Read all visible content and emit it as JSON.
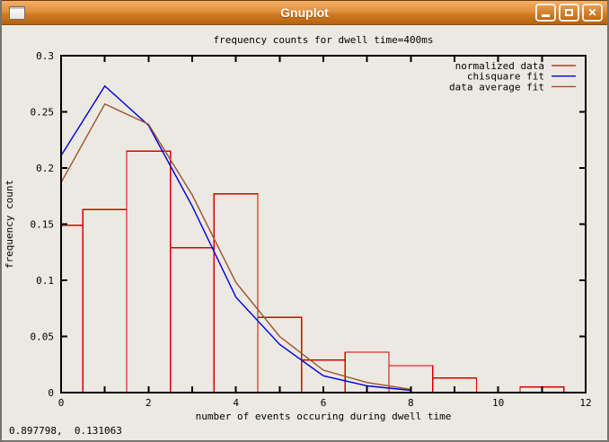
{
  "window": {
    "title": "Gnuplot",
    "controls": {
      "minimize_label": "minimize",
      "maximize_label": "maximize",
      "close_label": "close",
      "close_glyph": "✕"
    }
  },
  "status": {
    "coordinates": "0.897798,  0.131063"
  },
  "theme": {
    "canvas_bg": "#ece9e2",
    "titlebar_orange": "#d07c24",
    "border_black": "#000000"
  },
  "chart_data": {
    "type": "histogram_with_line_fits",
    "title": "frequency counts for dwell time=400ms",
    "xlabel": "number of events occuring during dwell time",
    "ylabel": "frequency count",
    "xlim": [
      0,
      12
    ],
    "ylim": [
      0,
      0.3
    ],
    "grid": false,
    "legend_position": "top-right",
    "xticks_labeled": [
      0,
      2,
      4,
      6,
      8,
      10,
      12
    ],
    "xtick_labels": [
      "0",
      "2",
      "4",
      "6",
      "8",
      "10",
      "12"
    ],
    "xtick_minor_every": 1,
    "yticks": [
      0,
      0.05,
      0.1,
      0.15,
      0.2,
      0.25,
      0.3
    ],
    "ytick_labels": [
      "0",
      "0.05",
      "0.1",
      "0.15",
      "0.2",
      "0.25",
      "0.3"
    ],
    "series": [
      {
        "name": "normalized data",
        "style": "boxes",
        "color": "#dd0000",
        "box_width": 1,
        "x": [
          0,
          1,
          2,
          3,
          4,
          5,
          6,
          7,
          8,
          9,
          10,
          11
        ],
        "y": [
          0.149,
          0.163,
          0.215,
          0.129,
          0.177,
          0.067,
          0.029,
          0.036,
          0.024,
          0.013,
          0,
          0.005
        ]
      },
      {
        "name": "chisquare fit",
        "style": "line",
        "color": "#0000dd",
        "x": [
          0,
          1,
          2,
          3,
          4,
          5,
          6,
          7,
          8
        ],
        "y": [
          0.211,
          0.273,
          0.238,
          0.166,
          0.085,
          0.043,
          0.015,
          0.006,
          0.002
        ]
      },
      {
        "name": "data average fit",
        "style": "line",
        "color": "#a0522d",
        "x": [
          0,
          1,
          2,
          3,
          4,
          5,
          6,
          7,
          8
        ],
        "y": [
          0.187,
          0.257,
          0.239,
          0.176,
          0.098,
          0.05,
          0.02,
          0.009,
          0.003
        ]
      }
    ]
  }
}
